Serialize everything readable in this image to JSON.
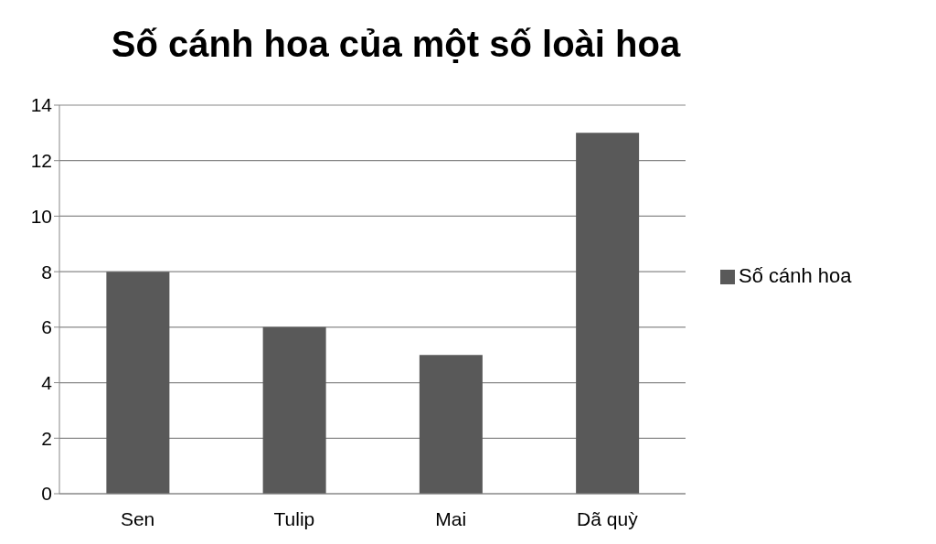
{
  "chart_data": {
    "type": "bar",
    "title": "Số cánh hoa của một số loài hoa",
    "categories": [
      "Sen",
      "Tulip",
      "Mai",
      "Dã quỳ"
    ],
    "series": [
      {
        "name": "Số cánh hoa",
        "color": "#595959",
        "values": [
          8,
          6,
          5,
          13
        ]
      }
    ],
    "ylim": [
      0,
      14
    ],
    "yticks": [
      0,
      2,
      4,
      6,
      8,
      10,
      12,
      14
    ],
    "grid": "y",
    "legend": "right"
  }
}
